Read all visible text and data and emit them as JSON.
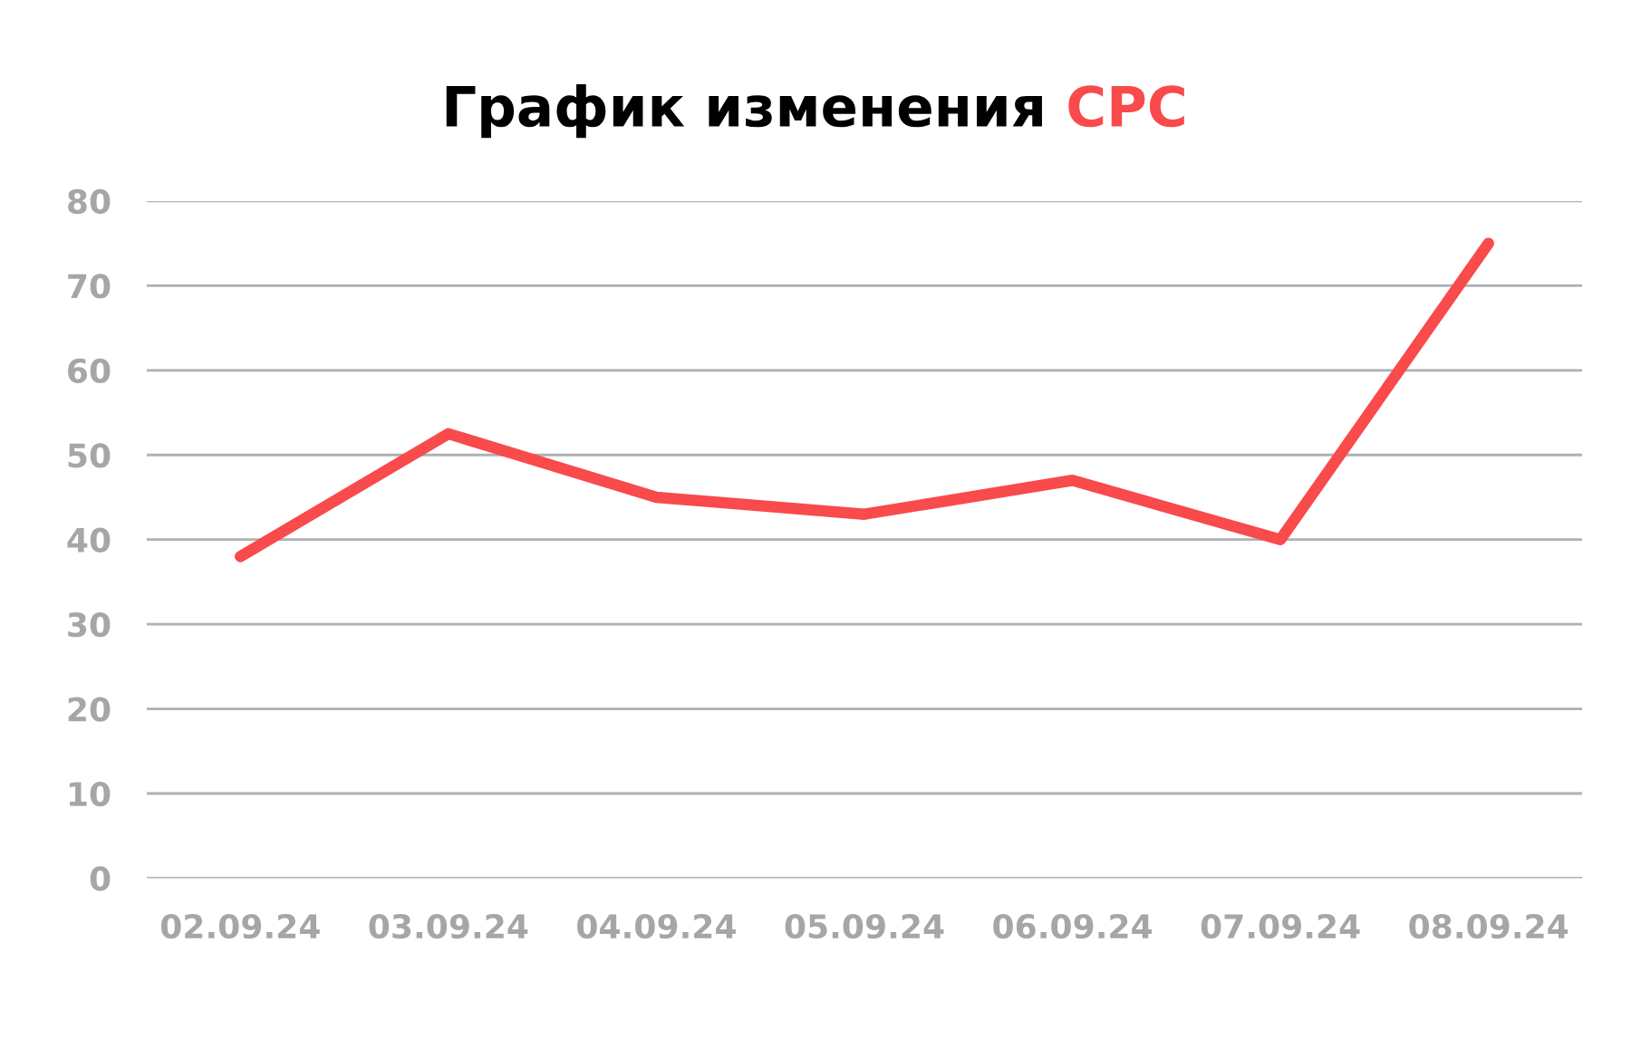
{
  "chart_data": {
    "type": "line",
    "title": "График изменения CPC",
    "categories": [
      "02.09.24",
      "03.09.24",
      "04.09.24",
      "05.09.24",
      "06.09.24",
      "07.09.24",
      "08.09.24"
    ],
    "series": [
      {
        "color": "#f94a4c",
        "values": [
          38,
          52.5,
          45,
          43,
          47,
          40,
          75
        ]
      }
    ],
    "ylim": [
      0,
      80
    ],
    "yticks": [
      0,
      10,
      20,
      30,
      40,
      50,
      60,
      70,
      80
    ],
    "grid": "y",
    "marker": "none",
    "line_style": "solid"
  }
}
